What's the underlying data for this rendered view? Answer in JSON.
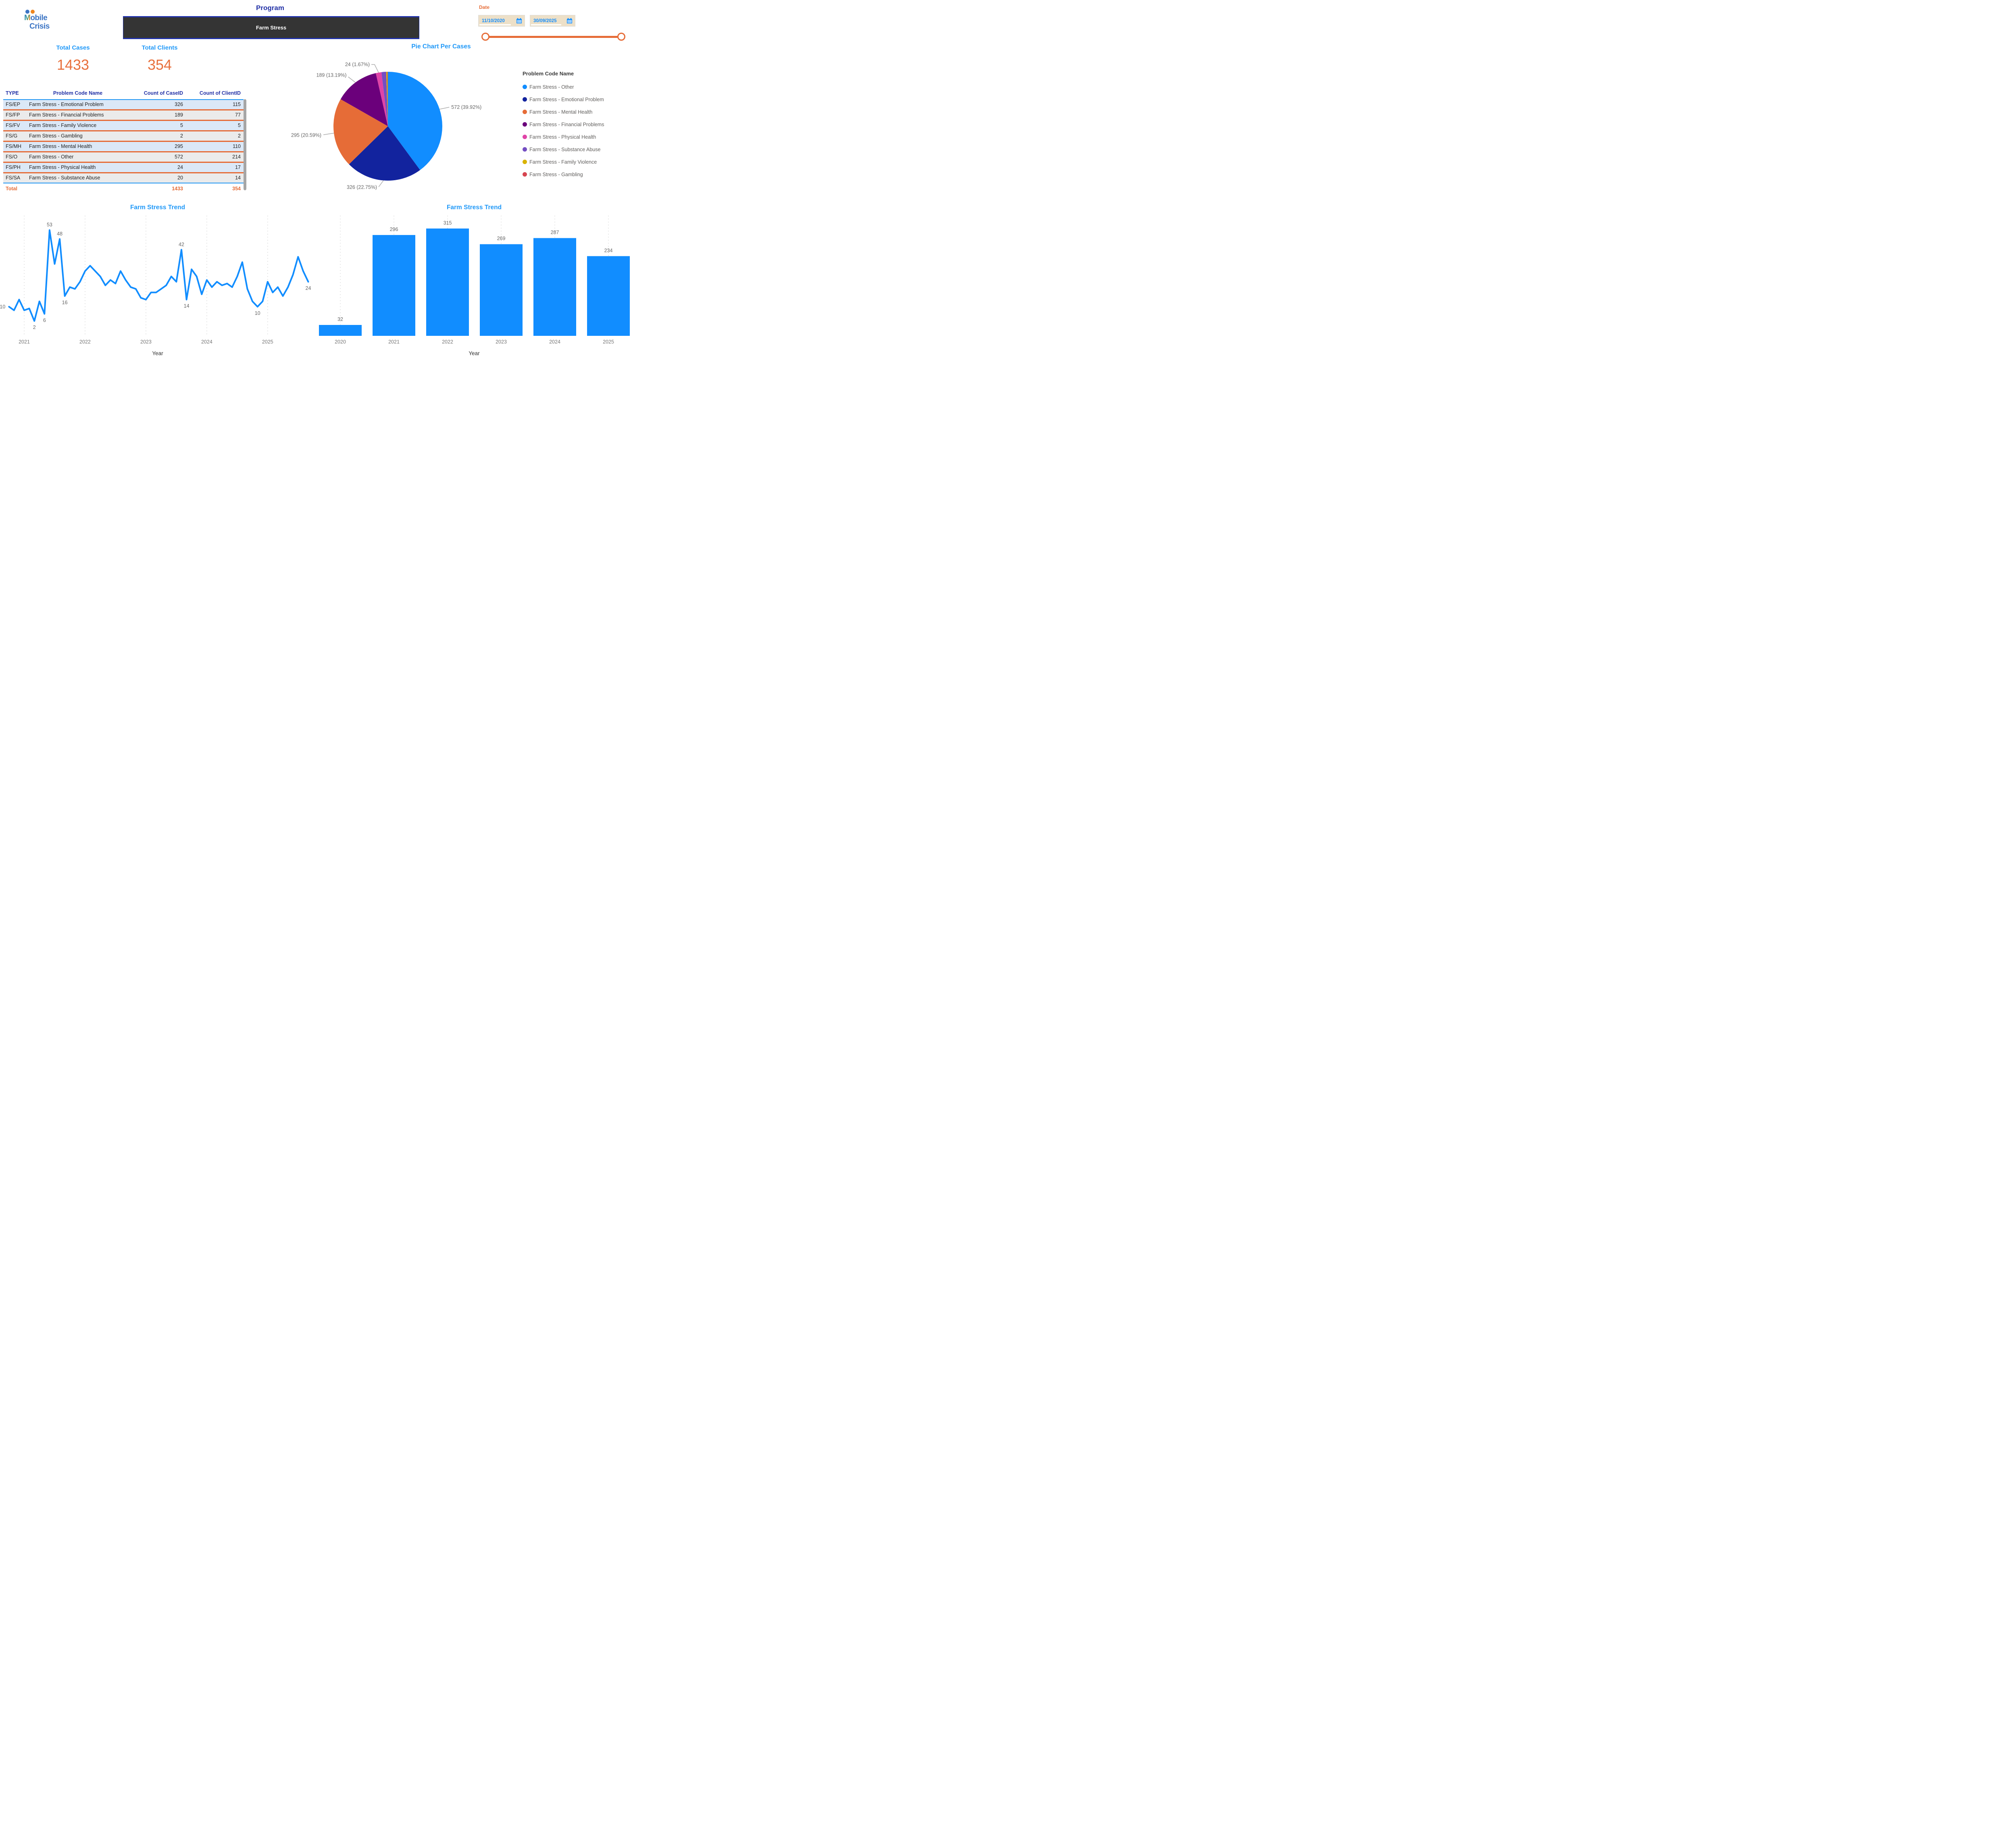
{
  "logo": {
    "m": "M",
    "rest": "obile",
    "line2": "Crisis"
  },
  "program": {
    "title": "Program",
    "selected": "Farm Stress"
  },
  "date_slicer": {
    "label": "Date",
    "start_date": "11/10/2020",
    "end_date": "30/09/2025"
  },
  "kpis": {
    "cases_label": "Total Cases",
    "cases_value": "1433",
    "clients_label": "Total Clients",
    "clients_value": "354"
  },
  "table": {
    "headers": [
      "TYPE",
      "Problem Code Name",
      "Count of CaseID",
      "Count of ClientID"
    ],
    "rows": [
      [
        "FS/EP",
        "Farm Stress - Emotional Problem",
        "326",
        "115"
      ],
      [
        "FS/FP",
        "Farm Stress - Financial Problems",
        "189",
        "77"
      ],
      [
        "FS/FV",
        "Farm Stress - Family Violence",
        "5",
        "5"
      ],
      [
        "FS/G",
        "Farm Stress - Gambling",
        "2",
        "2"
      ],
      [
        "FS/MH",
        "Farm Stress - Mental Health",
        "295",
        "110"
      ],
      [
        "FS/O",
        "Farm Stress - Other",
        "572",
        "214"
      ],
      [
        "FS/PH",
        "Farm Stress - Physical Health",
        "24",
        "17"
      ],
      [
        "FS/SA",
        "Farm Stress - Substance Abuse",
        "20",
        "14"
      ]
    ],
    "total": {
      "label": "Total",
      "caseid": "1433",
      "clientid": "354"
    }
  },
  "colors": {
    "accent_blue": "#2199F8",
    "chart_blue": "#118DFF",
    "dark_blue": "#2130A6",
    "orange": "#E66C37",
    "charcoal": "#343434",
    "label_gray": "#666666",
    "date_box_tan": "#EDE0C8"
  },
  "chart_data": [
    {
      "type": "pie",
      "title": "Pie Chart Per Cases",
      "legend_title": "Problem Code  Name",
      "total": 1433,
      "slices": [
        {
          "name": "Farm Stress - Other",
          "value": 572,
          "pct": "39.92%",
          "color": "#118DFF",
          "label": "572 (39.92%)",
          "side": "right"
        },
        {
          "name": "Farm Stress - Emotional Problem",
          "value": 326,
          "pct": "22.75%",
          "color": "#12239E",
          "label": "326 (22.75%)",
          "side": "bottom"
        },
        {
          "name": "Farm Stress - Mental Health",
          "value": 295,
          "pct": "20.59%",
          "color": "#E66C37",
          "label": "295 (20.59%)",
          "side": "left"
        },
        {
          "name": "Farm Stress - Financial Problems",
          "value": 189,
          "pct": "13.19%",
          "color": "#6B007B",
          "label": "189 (13.19%)",
          "side": "top-left"
        },
        {
          "name": "Farm Stress - Physical Health",
          "value": 24,
          "pct": "1.67%",
          "color": "#E044A7",
          "label": "24 (1.67%)",
          "side": "top"
        },
        {
          "name": "Farm Stress - Substance Abuse",
          "value": 20,
          "color": "#744EC2"
        },
        {
          "name": "Farm Stress - Family Violence",
          "value": 5,
          "color": "#D9B300"
        },
        {
          "name": "Farm Stress - Gambling",
          "value": 2,
          "color": "#D64550"
        }
      ],
      "legend_position": "right"
    },
    {
      "type": "line",
      "title": "Farm Stress Trend",
      "xlabel": "Year",
      "color": "#118DFF",
      "x_ticks": [
        "2021",
        "2022",
        "2023",
        "2024",
        "2025"
      ],
      "start_month": "2020-10",
      "values_note": "monthly counts Oct 2020 - Sep 2025, unlabeled points estimated from plot",
      "values": [
        10,
        8,
        14,
        8,
        9,
        2,
        13,
        6,
        53,
        34,
        48,
        16,
        21,
        20,
        24,
        30,
        33,
        30,
        27,
        22,
        25,
        23,
        30,
        25,
        21,
        20,
        15,
        14,
        18,
        18,
        20,
        22,
        27,
        24,
        42,
        14,
        31,
        27,
        17,
        25,
        21,
        24,
        22,
        23,
        21,
        27,
        35,
        20,
        13,
        10,
        13,
        24,
        18,
        21,
        16,
        21,
        28,
        38,
        30,
        24
      ],
      "labeled_points": [
        {
          "index": 0,
          "text": "10",
          "side": "left"
        },
        {
          "index": 5,
          "text": "2",
          "side": "below"
        },
        {
          "index": 7,
          "text": "6",
          "side": "below"
        },
        {
          "index": 8,
          "text": "53",
          "side": "above"
        },
        {
          "index": 10,
          "text": "48",
          "side": "above"
        },
        {
          "index": 11,
          "text": "16",
          "side": "below"
        },
        {
          "index": 34,
          "text": "42",
          "side": "above"
        },
        {
          "index": 35,
          "text": "14",
          "side": "below"
        },
        {
          "index": 49,
          "text": "10",
          "side": "below"
        },
        {
          "index": 59,
          "text": "24",
          "side": "below"
        }
      ],
      "grid": "vertical-dashed"
    },
    {
      "type": "bar",
      "title": "Farm Stress Trend",
      "xlabel": "Year",
      "color": "#118DFF",
      "categories": [
        "2020",
        "2021",
        "2022",
        "2023",
        "2024",
        "2025"
      ],
      "values": [
        32,
        296,
        315,
        269,
        287,
        234
      ],
      "grid": "vertical-dashed"
    }
  ]
}
